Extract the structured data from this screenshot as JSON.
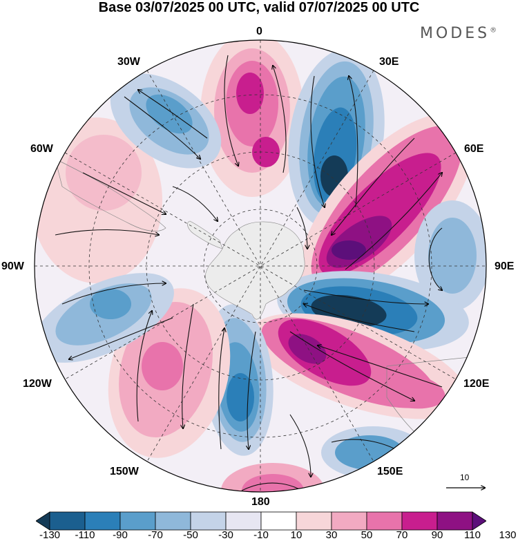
{
  "title": "Base 03/07/2025 00 UTC, valid 07/07/2025 00 UTC",
  "brand": "MODES",
  "brand_mark": "®",
  "longitude_labels": {
    "lon_0": "0",
    "lon_30e": "30E",
    "lon_60e": "60E",
    "lon_90e": "90E",
    "lon_120e": "120E",
    "lon_150e": "150E",
    "lon_180": "180",
    "lon_150w": "150W",
    "lon_120w": "120W",
    "lon_90w": "90W",
    "lon_60w": "60W",
    "lon_30w": "30W"
  },
  "reference_vector_label": "10",
  "colorbar": {
    "labels": [
      "-130",
      "-110",
      "-90",
      "-70",
      "-50",
      "-30",
      "-10",
      "10",
      "30",
      "50",
      "70",
      "90",
      "110",
      "130"
    ],
    "colors": [
      "#143b57",
      "#1b5f8f",
      "#2b7fb8",
      "#5a9ecb",
      "#8fb8da",
      "#c4d3e8",
      "#e7e6f2",
      "#ffffff",
      "#f7d6d9",
      "#f2aac2",
      "#e873ab",
      "#c81e8e",
      "#8e1183",
      "#5c0f7a"
    ]
  },
  "map": {
    "projection": "south polar stereographic",
    "continent_color": "#ececec",
    "features": [
      "dipole anomaly centers",
      "streamline arrows"
    ]
  }
}
